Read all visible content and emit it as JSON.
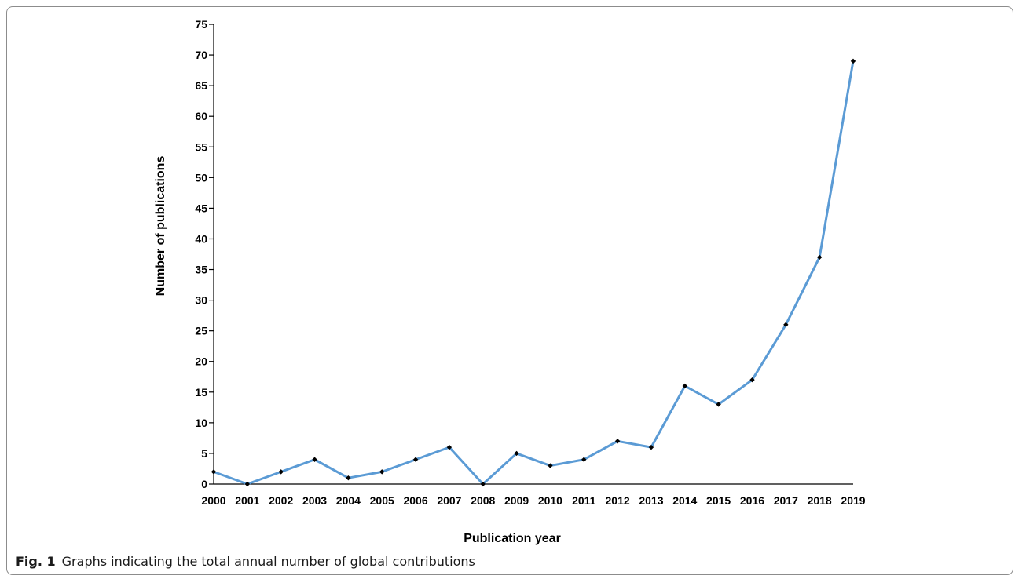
{
  "chart_data": {
    "type": "line",
    "title": "",
    "xlabel": "Publication year",
    "ylabel": "Number of publications",
    "x": [
      "2000",
      "2001",
      "2002",
      "2003",
      "2004",
      "2005",
      "2006",
      "2007",
      "2008",
      "2009",
      "2010",
      "2011",
      "2012",
      "2013",
      "2014",
      "2015",
      "2016",
      "2017",
      "2018",
      "2019"
    ],
    "series": [
      {
        "values": [
          2,
          0,
          2,
          4,
          1,
          2,
          4,
          6,
          0,
          5,
          3,
          4,
          7,
          6,
          16,
          13,
          17,
          26,
          37,
          69
        ]
      }
    ],
    "ylim": [
      0,
      75
    ],
    "yticks": [
      "0",
      "5",
      "10",
      "15",
      "20",
      "25",
      "30",
      "35",
      "40",
      "45",
      "50",
      "55",
      "60",
      "65",
      "70",
      "75"
    ],
    "grid": false,
    "legend": "none",
    "line_color": "#5b9bd5",
    "marker_color": "#000000"
  },
  "caption": {
    "label": "Fig. 1",
    "text": "Graphs indicating the total annual number of global contributions"
  }
}
